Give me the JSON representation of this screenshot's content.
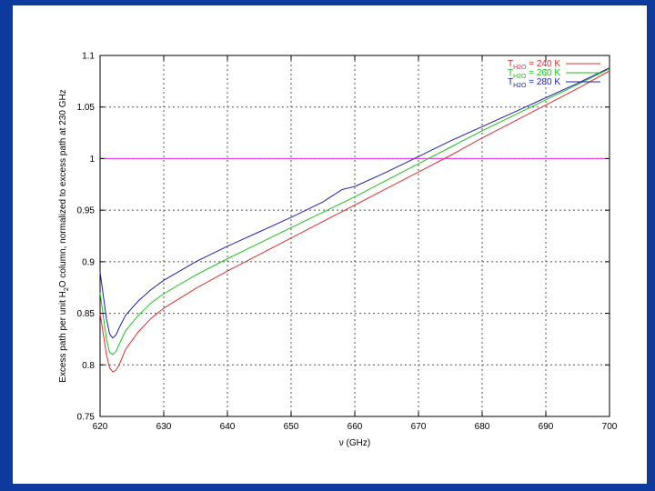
{
  "chart_data": {
    "type": "line",
    "xlabel": "ν (GHz)",
    "ylabel_parts": [
      "Excess path per unit H",
      "2",
      "O column, normalized to excess path at 230 GHz"
    ],
    "xlim": [
      620,
      700
    ],
    "ylim": [
      0.75,
      1.1
    ],
    "x_ticks": [
      620,
      630,
      640,
      650,
      660,
      670,
      680,
      690,
      700
    ],
    "y_ticks": [
      0.75,
      0.8,
      0.85,
      0.9,
      0.95,
      1,
      1.05,
      1.1
    ],
    "y_tick_labels": [
      "0.75",
      "0.8",
      "0.85",
      "0.9",
      "0.95",
      "1",
      "1.05",
      "1.1"
    ],
    "grid": true,
    "legend_position": "top-right",
    "reference_line": {
      "y": 1.0,
      "color": "#e040e0"
    },
    "series": [
      {
        "name_main": "T",
        "name_sub": "H2O",
        "name_rest": " = 240 K",
        "color": "#e03030",
        "x": [
          620,
          621,
          621.5,
          622,
          622.5,
          623,
          624,
          626,
          628,
          630,
          635,
          640,
          645,
          650,
          655,
          660,
          665,
          670,
          675,
          680,
          685,
          690,
          695,
          700
        ],
        "y": [
          0.85,
          0.81,
          0.797,
          0.793,
          0.795,
          0.8,
          0.815,
          0.832,
          0.845,
          0.855,
          0.874,
          0.891,
          0.907,
          0.923,
          0.939,
          0.955,
          0.971,
          0.987,
          1.003,
          1.02,
          1.036,
          1.052,
          1.068,
          1.085
        ]
      },
      {
        "name_main": "T",
        "name_sub": "H2O",
        "name_rest": " = 260 K",
        "color": "#20c020",
        "x": [
          620,
          621,
          621.5,
          622,
          622.5,
          623,
          624,
          626,
          628,
          630,
          635,
          640,
          645,
          650,
          655,
          660,
          665,
          670,
          675,
          680,
          685,
          690,
          695,
          700
        ],
        "y": [
          0.87,
          0.825,
          0.812,
          0.81,
          0.813,
          0.82,
          0.833,
          0.848,
          0.86,
          0.869,
          0.887,
          0.903,
          0.918,
          0.933,
          0.948,
          0.963,
          0.979,
          0.995,
          1.011,
          1.027,
          1.042,
          1.057,
          1.072,
          1.087
        ]
      },
      {
        "name_main": "T",
        "name_sub": "H2O",
        "name_rest": " = 280 K",
        "color": "#2020b0",
        "x": [
          620,
          621,
          621.5,
          622,
          622.5,
          623,
          624,
          626,
          628,
          630,
          635,
          640,
          645,
          650,
          655,
          658,
          660,
          665,
          670,
          675,
          680,
          685,
          690,
          695,
          700
        ],
        "y": [
          0.89,
          0.845,
          0.83,
          0.826,
          0.829,
          0.836,
          0.848,
          0.862,
          0.873,
          0.882,
          0.9,
          0.915,
          0.929,
          0.943,
          0.958,
          0.97,
          0.973,
          0.987,
          1.002,
          1.017,
          1.031,
          1.045,
          1.059,
          1.073,
          1.088
        ]
      }
    ]
  }
}
